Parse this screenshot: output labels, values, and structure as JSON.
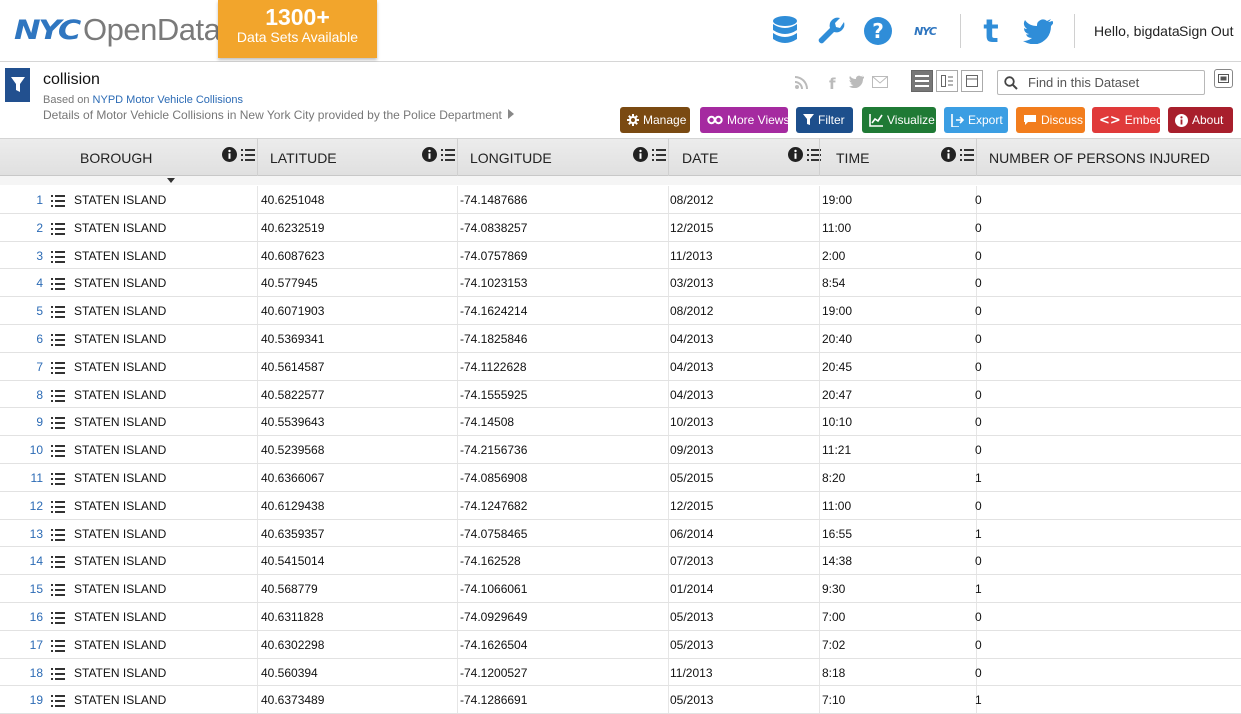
{
  "header": {
    "logo_nyc": "NYC",
    "logo_opendata": "OpenData",
    "badge_count": "1300+",
    "badge_subtitle": "Data Sets Available",
    "icons": [
      "database-icon",
      "wrench-icon",
      "help-icon",
      "nyc-icon",
      "tumblr-icon",
      "twitter-icon"
    ],
    "greeting": "Hello, bigdata",
    "signout": "Sign Out"
  },
  "dataset": {
    "title": "collision",
    "based_on_prefix": "Based on ",
    "based_on_link": "NYPD Motor Vehicle Collisions",
    "description": "Details of Motor Vehicle Collisions in New York City provided by the Police Department",
    "search_placeholder": "Find in this Dataset"
  },
  "actions": [
    {
      "label": "Manage",
      "color": "#7a4a12",
      "icon": "gear-icon"
    },
    {
      "label": "More Views",
      "color": "#a52aa0",
      "icon": "views-icon"
    },
    {
      "label": "Filter",
      "color": "#1d4f8c",
      "icon": "filter-icon"
    },
    {
      "label": "Visualize",
      "color": "#1f7a35",
      "icon": "chart-icon"
    },
    {
      "label": "Export",
      "color": "#3b9ee3",
      "icon": "export-icon"
    },
    {
      "label": "Discuss",
      "color": "#f27d1d",
      "icon": "comment-icon"
    },
    {
      "label": "Embed",
      "color": "#e03a3a",
      "icon": "code-icon"
    },
    {
      "label": "About",
      "color": "#a81f2c",
      "icon": "info-icon"
    }
  ],
  "columns": [
    "BOROUGH",
    "LATITUDE",
    "LONGITUDE",
    "DATE",
    "TIME",
    "NUMBER OF PERSONS INJURED"
  ],
  "rows": [
    [
      "1",
      "STATEN ISLAND",
      "40.6251048",
      "-74.1487686",
      "08/2012",
      "19:00",
      "0"
    ],
    [
      "2",
      "STATEN ISLAND",
      "40.6232519",
      "-74.0838257",
      "12/2015",
      "11:00",
      "0"
    ],
    [
      "3",
      "STATEN ISLAND",
      "40.6087623",
      "-74.0757869",
      "11/2013",
      "2:00",
      "0"
    ],
    [
      "4",
      "STATEN ISLAND",
      "40.577945",
      "-74.1023153",
      "03/2013",
      "8:54",
      "0"
    ],
    [
      "5",
      "STATEN ISLAND",
      "40.6071903",
      "-74.1624214",
      "08/2012",
      "19:00",
      "0"
    ],
    [
      "6",
      "STATEN ISLAND",
      "40.5369341",
      "-74.1825846",
      "04/2013",
      "20:40",
      "0"
    ],
    [
      "7",
      "STATEN ISLAND",
      "40.5614587",
      "-74.1122628",
      "04/2013",
      "20:45",
      "0"
    ],
    [
      "8",
      "STATEN ISLAND",
      "40.5822577",
      "-74.1555925",
      "04/2013",
      "20:47",
      "0"
    ],
    [
      "9",
      "STATEN ISLAND",
      "40.5539643",
      "-74.14508",
      "10/2013",
      "10:10",
      "0"
    ],
    [
      "10",
      "STATEN ISLAND",
      "40.5239568",
      "-74.2156736",
      "09/2013",
      "11:21",
      "0"
    ],
    [
      "11",
      "STATEN ISLAND",
      "40.6366067",
      "-74.0856908",
      "05/2015",
      "8:20",
      "1"
    ],
    [
      "12",
      "STATEN ISLAND",
      "40.6129438",
      "-74.1247682",
      "12/2015",
      "11:00",
      "0"
    ],
    [
      "13",
      "STATEN ISLAND",
      "40.6359357",
      "-74.0758465",
      "06/2014",
      "16:55",
      "1"
    ],
    [
      "14",
      "STATEN ISLAND",
      "40.5415014",
      "-74.162528",
      "07/2013",
      "14:38",
      "0"
    ],
    [
      "15",
      "STATEN ISLAND",
      "40.568779",
      "-74.1066061",
      "01/2014",
      "9:30",
      "1"
    ],
    [
      "16",
      "STATEN ISLAND",
      "40.6311828",
      "-74.0929649",
      "05/2013",
      "7:00",
      "0"
    ],
    [
      "17",
      "STATEN ISLAND",
      "40.6302298",
      "-74.1626504",
      "05/2013",
      "7:02",
      "0"
    ],
    [
      "18",
      "STATEN ISLAND",
      "40.560394",
      "-74.1200527",
      "11/2013",
      "8:18",
      "0"
    ],
    [
      "19",
      "STATEN ISLAND",
      "40.6373489",
      "-74.1286691",
      "05/2013",
      "7:10",
      "1"
    ]
  ]
}
